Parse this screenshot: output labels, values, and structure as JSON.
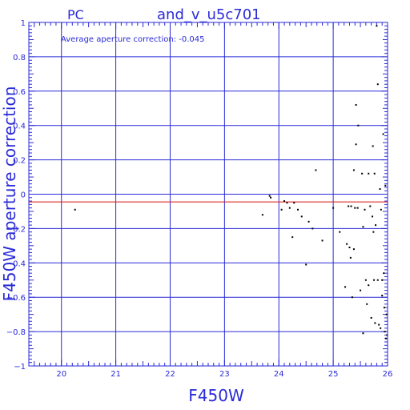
{
  "chart_data": {
    "type": "scatter",
    "title_left": "PC",
    "title": "and_v_u5c701",
    "annotation": "Average aperture correction:  -0.045",
    "xlabel": "F450W",
    "ylabel": "F450W aperture correction",
    "xlim": [
      19.4,
      26.0
    ],
    "ylim": [
      -1.0,
      1.0
    ],
    "x_ticks": [
      20,
      21,
      22,
      23,
      24,
      25,
      26
    ],
    "y_ticks": [
      1,
      0.8,
      0.6,
      0.4,
      0.2,
      0,
      -0.2,
      -0.4,
      -0.6,
      -0.8,
      -1
    ],
    "y_tick_labels": [
      "1",
      "0.8",
      "0.6",
      "0.4",
      "0.2",
      "0",
      "−0.2",
      "−0.4",
      "−0.6",
      "−0.8",
      "−1"
    ],
    "grid": true,
    "reference_line": {
      "y": -0.045,
      "color": "#e01010"
    },
    "colors": {
      "axes": "#2a2ad8",
      "grid": "#2a2ad8",
      "points": "#000000"
    },
    "points": [
      [
        20.25,
        -0.09
      ],
      [
        23.7,
        -0.12
      ],
      [
        23.83,
        -0.01
      ],
      [
        23.85,
        -0.02
      ],
      [
        24.05,
        -0.09
      ],
      [
        24.1,
        -0.04
      ],
      [
        24.15,
        -0.05
      ],
      [
        24.2,
        -0.08
      ],
      [
        24.25,
        -0.25
      ],
      [
        24.28,
        -0.05
      ],
      [
        24.35,
        -0.09
      ],
      [
        24.42,
        -0.13
      ],
      [
        24.5,
        -0.41
      ],
      [
        24.55,
        -0.16
      ],
      [
        24.62,
        -0.2
      ],
      [
        24.68,
        0.14
      ],
      [
        24.8,
        -0.27
      ],
      [
        25.0,
        -0.08
      ],
      [
        25.12,
        -0.22
      ],
      [
        25.22,
        -0.54
      ],
      [
        25.25,
        -0.29
      ],
      [
        25.28,
        -0.07
      ],
      [
        25.3,
        -0.31
      ],
      [
        25.32,
        -0.37
      ],
      [
        25.33,
        -0.07
      ],
      [
        25.35,
        -0.6
      ],
      [
        25.38,
        0.14
      ],
      [
        25.38,
        -0.32
      ],
      [
        25.4,
        -0.08
      ],
      [
        25.42,
        0.52
      ],
      [
        25.42,
        0.29
      ],
      [
        25.45,
        -0.08
      ],
      [
        25.46,
        0.4
      ],
      [
        25.5,
        -0.56
      ],
      [
        25.53,
        0.12
      ],
      [
        25.55,
        -0.81
      ],
      [
        25.55,
        -0.19
      ],
      [
        25.58,
        -0.09
      ],
      [
        25.6,
        -0.5
      ],
      [
        25.62,
        -0.64
      ],
      [
        25.65,
        0.12
      ],
      [
        25.65,
        -0.53
      ],
      [
        25.68,
        -0.07
      ],
      [
        25.7,
        -0.72
      ],
      [
        25.72,
        -0.13
      ],
      [
        25.73,
        0.28
      ],
      [
        25.74,
        -0.22
      ],
      [
        25.75,
        -0.5
      ],
      [
        25.76,
        0.12
      ],
      [
        25.77,
        -0.75
      ],
      [
        25.78,
        -0.18
      ],
      [
        25.8,
        0.98
      ],
      [
        25.82,
        0.64
      ],
      [
        25.82,
        -0.5
      ],
      [
        25.84,
        -0.76
      ],
      [
        25.86,
        0.03
      ],
      [
        25.87,
        -0.78
      ],
      [
        25.88,
        -0.09
      ],
      [
        25.9,
        -0.5
      ],
      [
        25.9,
        -0.59
      ],
      [
        25.92,
        0.35
      ],
      [
        25.93,
        -0.46
      ],
      [
        25.94,
        -0.66
      ],
      [
        25.95,
        -0.8
      ],
      [
        25.96,
        0.05
      ],
      [
        25.97,
        -0.84
      ],
      [
        25.98,
        -0.7
      ],
      [
        25.99,
        -0.82
      ]
    ]
  }
}
